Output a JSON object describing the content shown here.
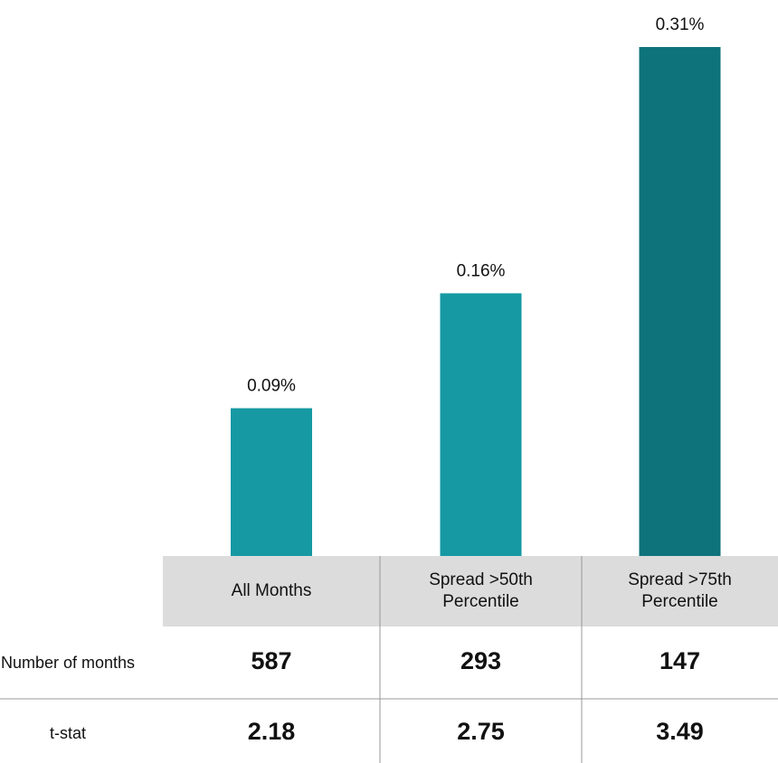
{
  "chart_data": {
    "type": "bar",
    "categories": [
      "All Months",
      "Spread >50th Percentile",
      "Spread >75th Percentile"
    ],
    "values": [
      0.09,
      0.16,
      0.31
    ],
    "value_labels": [
      "0.09%",
      "0.16%",
      "0.31%"
    ],
    "colors": [
      "#1699a3",
      "#1699a3",
      "#0e737a"
    ]
  },
  "table": {
    "rows": [
      {
        "label": "Number of months",
        "values": [
          "587",
          "293",
          "147"
        ]
      },
      {
        "label": "t-stat",
        "values": [
          "2.18",
          "2.75",
          "3.49"
        ]
      }
    ]
  }
}
